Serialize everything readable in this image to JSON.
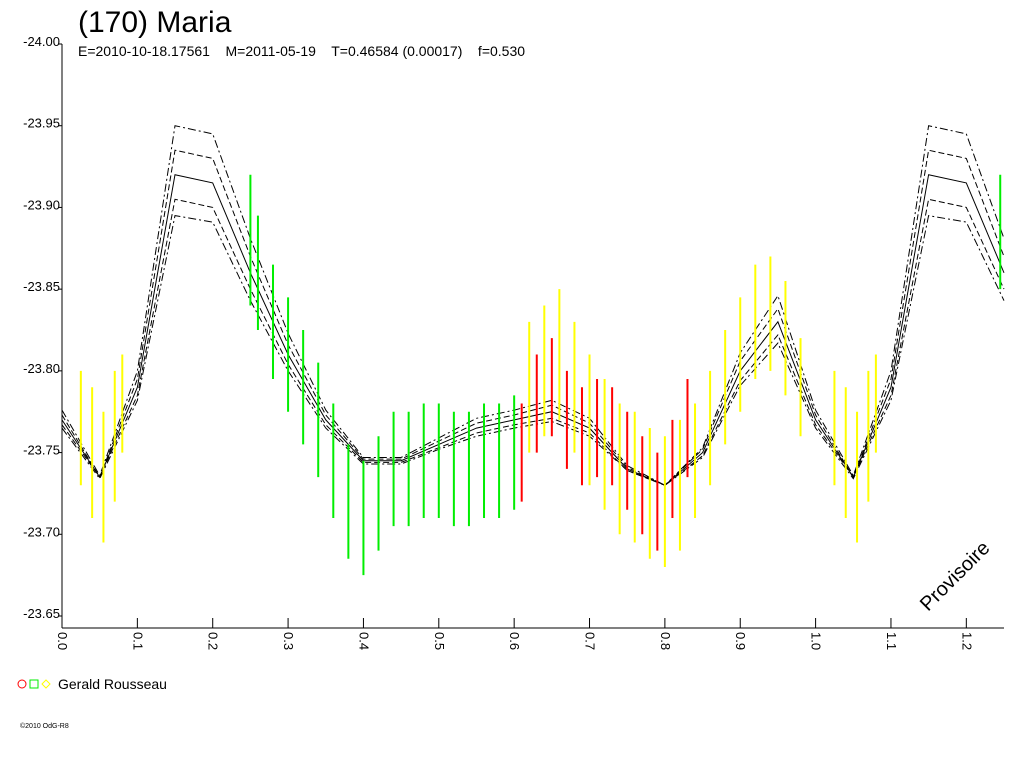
{
  "chart_data": {
    "type": "lightcurve",
    "title": "(170) Maria",
    "subtitle": "E=2010-10-18.17561    M=2011-05-19    T=0.46584 (0.00017)    f=0.530",
    "annotation": "Provisoire",
    "legend": "Gerald Rousseau",
    "footer": "©2010 OdG-R8",
    "xlim": [
      0,
      1.25
    ],
    "ylim": [
      -23.65,
      -24.0
    ],
    "xticks": [
      {
        "value": 0,
        "label": "0.0"
      },
      0.1,
      0.2,
      0.3,
      0.4,
      0.5,
      0.6,
      0.7,
      0.8,
      0.9,
      {
        "value": 1,
        "label": "1.0"
      },
      1.1,
      1.2
    ],
    "yticks": [
      {
        "value": -24,
        "label": "-24.00"
      },
      -23.95,
      {
        "value": -23.9,
        "label": "-23.90"
      },
      -23.85,
      {
        "value": -23.8,
        "label": "-23.80"
      },
      -23.75,
      {
        "value": -23.7,
        "label": "-23.70"
      },
      -23.65
    ],
    "model": {
      "color": "#000000",
      "x": [
        0,
        0.05,
        0.1,
        0.15,
        0.2,
        0.25,
        0.3,
        0.35,
        0.4,
        0.45,
        0.5,
        0.55,
        0.6,
        0.65,
        0.7,
        0.75,
        0.8,
        0.85,
        0.9,
        0.95,
        1,
        1.05,
        1.1,
        1.15,
        1.2,
        1.25
      ],
      "curves": [
        {
          "style": "dashdot",
          "values": [
            -23.776,
            -23.736,
            -23.8,
            -23.95,
            -23.945,
            -23.881,
            -23.823,
            -23.776,
            -23.747,
            -23.747,
            -23.759,
            -23.771,
            -23.776,
            -23.782,
            -23.771,
            -23.742,
            -23.73,
            -23.753,
            -23.811,
            -23.846,
            -23.776,
            -23.736,
            -23.8,
            -23.95,
            -23.945,
            -23.881
          ]
        },
        {
          "style": "dashed",
          "values": [
            -23.773,
            -23.735,
            -23.795,
            -23.935,
            -23.93,
            -23.87,
            -23.816,
            -23.773,
            -23.746,
            -23.746,
            -23.757,
            -23.768,
            -23.773,
            -23.779,
            -23.768,
            -23.741,
            -23.73,
            -23.752,
            -23.806,
            -23.838,
            -23.773,
            -23.735,
            -23.795,
            -23.935,
            -23.93,
            -23.87
          ]
        },
        {
          "style": "solid",
          "values": [
            -23.77,
            -23.735,
            -23.79,
            -23.92,
            -23.915,
            -23.86,
            -23.81,
            -23.77,
            -23.745,
            -23.745,
            -23.755,
            -23.765,
            -23.77,
            -23.775,
            -23.765,
            -23.74,
            -23.73,
            -23.75,
            -23.8,
            -23.83,
            -23.77,
            -23.735,
            -23.79,
            -23.92,
            -23.915,
            -23.86
          ]
        },
        {
          "style": "dashed",
          "values": [
            -23.767,
            -23.735,
            -23.785,
            -23.905,
            -23.9,
            -23.85,
            -23.804,
            -23.767,
            -23.744,
            -23.744,
            -23.753,
            -23.762,
            -23.767,
            -23.771,
            -23.762,
            -23.739,
            -23.73,
            -23.748,
            -23.794,
            -23.822,
            -23.767,
            -23.735,
            -23.785,
            -23.905,
            -23.9,
            -23.85
          ]
        },
        {
          "style": "dashdot",
          "values": [
            -23.765,
            -23.734,
            -23.782,
            -23.895,
            -23.891,
            -23.843,
            -23.8,
            -23.765,
            -23.743,
            -23.743,
            -23.752,
            -23.76,
            -23.765,
            -23.769,
            -23.76,
            -23.739,
            -23.73,
            -23.747,
            -23.791,
            -23.817,
            -23.765,
            -23.734,
            -23.782,
            -23.895,
            -23.891,
            -23.843
          ]
        }
      ]
    },
    "series": [
      {
        "color": "#ff0000",
        "marker": "circle",
        "x": [
          0.61,
          0.63,
          0.65,
          0.67,
          0.69,
          0.71,
          0.73,
          0.75,
          0.77,
          0.79,
          0.81,
          0.83
        ],
        "values": [
          -23.75,
          -23.78,
          -23.79,
          -23.77,
          -23.76,
          -23.765,
          -23.76,
          -23.745,
          -23.73,
          -23.72,
          -23.74,
          -23.765
        ],
        "errors": [
          0.03,
          0.03,
          0.03,
          0.03,
          0.03,
          0.03,
          0.03,
          0.03,
          0.03,
          0.03,
          0.03,
          0.03
        ]
      },
      {
        "color": "#00ee00",
        "marker": "square",
        "x": [
          0.25,
          0.26,
          0.28,
          0.3,
          0.32,
          0.34,
          0.36,
          0.38,
          0.4,
          0.42,
          0.44,
          0.46,
          0.48,
          0.5,
          0.52,
          0.54,
          0.56,
          0.58,
          0.6,
          1.245
        ],
        "values": [
          -23.88,
          -23.86,
          -23.83,
          -23.81,
          -23.79,
          -23.77,
          -23.745,
          -23.72,
          -23.71,
          -23.725,
          -23.74,
          -23.74,
          -23.745,
          -23.745,
          -23.74,
          -23.74,
          -23.745,
          -23.745,
          -23.75,
          -23.885
        ],
        "errors": [
          0.04,
          0.035,
          0.035,
          0.035,
          0.035,
          0.035,
          0.035,
          0.035,
          0.035,
          0.035,
          0.035,
          0.035,
          0.035,
          0.035,
          0.035,
          0.035,
          0.035,
          0.035,
          0.035,
          0.035
        ]
      },
      {
        "color": "#ffff00",
        "marker": "diamond",
        "x": [
          0.025,
          0.04,
          0.055,
          0.07,
          0.08,
          0.62,
          0.64,
          0.66,
          0.68,
          0.7,
          0.72,
          0.74,
          0.76,
          0.78,
          0.8,
          0.82,
          0.84,
          0.86,
          0.88,
          0.9,
          0.92,
          0.94,
          0.96,
          0.98,
          1.025,
          1.04,
          1.055,
          1.07,
          1.08
        ],
        "values": [
          -23.765,
          -23.75,
          -23.735,
          -23.76,
          -23.78,
          -23.79,
          -23.8,
          -23.81,
          -23.79,
          -23.77,
          -23.755,
          -23.74,
          -23.735,
          -23.725,
          -23.72,
          -23.73,
          -23.745,
          -23.765,
          -23.79,
          -23.81,
          -23.83,
          -23.835,
          -23.82,
          -23.79,
          -23.765,
          -23.75,
          -23.735,
          -23.76,
          -23.78
        ],
        "errors": [
          0.035,
          0.04,
          0.04,
          0.04,
          0.03,
          0.04,
          0.04,
          0.04,
          0.04,
          0.04,
          0.04,
          0.04,
          0.04,
          0.04,
          0.04,
          0.04,
          0.035,
          0.035,
          0.035,
          0.035,
          0.035,
          0.035,
          0.035,
          0.03,
          0.035,
          0.04,
          0.04,
          0.04,
          0.03
        ]
      }
    ]
  }
}
